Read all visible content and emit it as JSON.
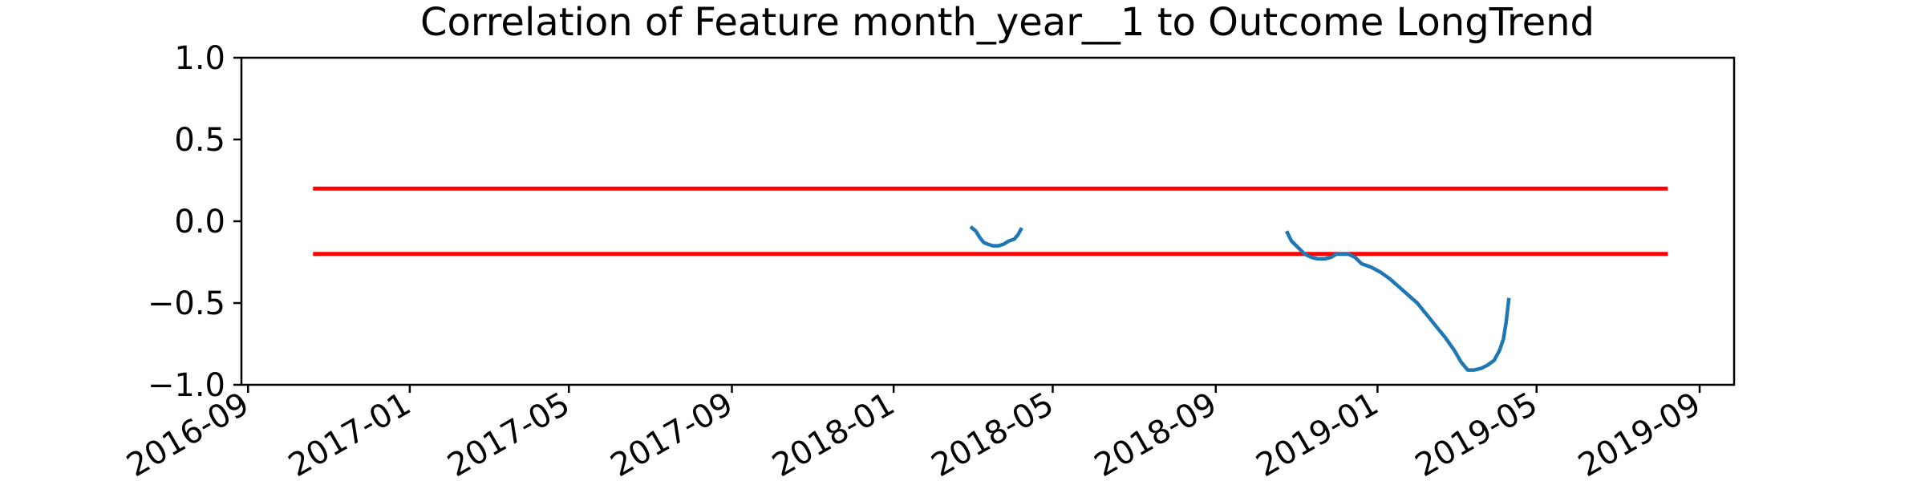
{
  "chart_data": {
    "type": "line",
    "title": "Correlation of Feature month_year__1 to Outcome LongTrend",
    "xlabel": "",
    "ylabel": "",
    "x_axis_type": "date",
    "xlim": [
      "2016-08-27",
      "2019-09-27"
    ],
    "ylim": [
      -1.0,
      1.0
    ],
    "y_ticks": [
      1.0,
      0.5,
      0.0,
      -0.5,
      -1.0
    ],
    "y_tick_labels": [
      "1.0",
      "0.5",
      "0.0",
      "−0.5",
      "−1.0"
    ],
    "x_ticks": [
      "2016-09-01",
      "2017-01-01",
      "2017-05-01",
      "2017-09-01",
      "2018-01-01",
      "2018-05-01",
      "2018-09-01",
      "2019-01-01",
      "2019-05-01",
      "2019-09-01"
    ],
    "x_tick_labels": [
      "2016-09",
      "2017-01",
      "2017-05",
      "2017-09",
      "2018-01",
      "2018-05",
      "2018-09",
      "2019-01",
      "2019-05",
      "2019-09"
    ],
    "grid": false,
    "legend": "none",
    "reference_lines": [
      {
        "y": 0.2,
        "x_start": "2016-10-20",
        "x_end": "2019-08-08",
        "color": "#ff0000"
      },
      {
        "y": -0.2,
        "x_start": "2016-10-20",
        "x_end": "2019-08-08",
        "color": "#ff0000"
      }
    ],
    "series": [
      {
        "color": "#1f77b4",
        "segments": [
          [
            [
              "2018-03-01",
              -0.04
            ],
            [
              "2018-03-04",
              -0.06
            ],
            [
              "2018-03-07",
              -0.1
            ],
            [
              "2018-03-10",
              -0.13
            ],
            [
              "2018-03-13",
              -0.14
            ],
            [
              "2018-03-17",
              -0.15
            ],
            [
              "2018-03-21",
              -0.15
            ],
            [
              "2018-03-25",
              -0.14
            ],
            [
              "2018-03-29",
              -0.12
            ],
            [
              "2018-04-02",
              -0.11
            ],
            [
              "2018-04-05",
              -0.08
            ],
            [
              "2018-04-07",
              -0.05
            ]
          ],
          [
            [
              "2018-10-25",
              -0.07
            ],
            [
              "2018-10-28",
              -0.12
            ],
            [
              "2018-11-02",
              -0.16
            ],
            [
              "2018-11-07",
              -0.2
            ],
            [
              "2018-11-12",
              -0.22
            ],
            [
              "2018-11-17",
              -0.23
            ],
            [
              "2018-11-22",
              -0.23
            ],
            [
              "2018-11-27",
              -0.22
            ],
            [
              "2018-12-01",
              -0.2
            ],
            [
              "2018-12-05",
              -0.2
            ],
            [
              "2018-12-10",
              -0.2
            ],
            [
              "2018-12-15",
              -0.22
            ],
            [
              "2018-12-20",
              -0.26
            ],
            [
              "2018-12-27",
              -0.28
            ],
            [
              "2019-01-03",
              -0.31
            ],
            [
              "2019-01-10",
              -0.35
            ],
            [
              "2019-01-17",
              -0.4
            ],
            [
              "2019-01-24",
              -0.45
            ],
            [
              "2019-01-31",
              -0.5
            ],
            [
              "2019-02-07",
              -0.57
            ],
            [
              "2019-02-14",
              -0.64
            ],
            [
              "2019-02-21",
              -0.71
            ],
            [
              "2019-02-28",
              -0.79
            ],
            [
              "2019-03-05",
              -0.86
            ],
            [
              "2019-03-10",
              -0.91
            ],
            [
              "2019-03-15",
              -0.91
            ],
            [
              "2019-03-20",
              -0.9
            ],
            [
              "2019-03-25",
              -0.88
            ],
            [
              "2019-03-30",
              -0.85
            ],
            [
              "2019-04-03",
              -0.79
            ],
            [
              "2019-04-06",
              -0.72
            ],
            [
              "2019-04-08",
              -0.62
            ],
            [
              "2019-04-10",
              -0.48
            ]
          ]
        ]
      }
    ]
  }
}
